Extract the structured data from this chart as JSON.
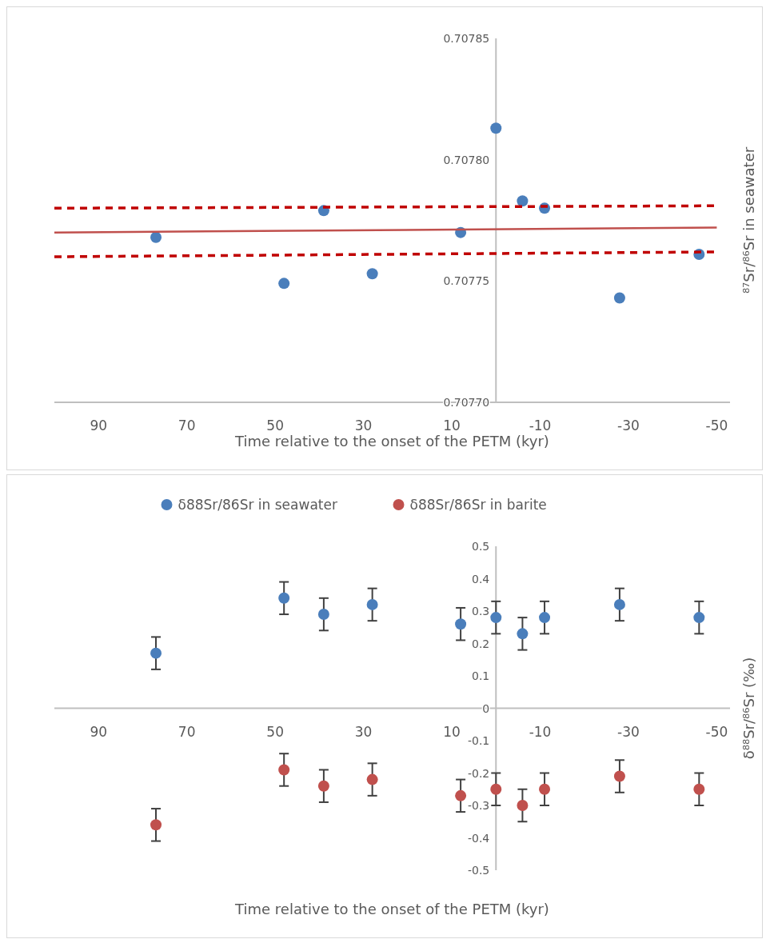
{
  "chart_data": [
    {
      "type": "scatter",
      "xlabel": "Time relative to the onset of the PETM (kyr)",
      "ylabel": "⁸⁷Sr/⁸⁶Sr in seawater",
      "xlim": [
        100,
        -53
      ],
      "xticks": [
        90,
        70,
        50,
        30,
        10,
        -10,
        -30,
        -50
      ],
      "ylim": [
        0.7077,
        0.70785
      ],
      "yticks": [
        {
          "value": 0.7077,
          "label": "0.70770"
        },
        {
          "value": 0.70775,
          "label": "0.70775"
        },
        {
          "value": 0.7078,
          "label": "0.70780"
        },
        {
          "value": 0.70785,
          "label": "0.70785"
        }
      ],
      "grid": false,
      "legend": false,
      "marker": "circle",
      "series": [
        {
          "color": "#4a7ebb",
          "x": [
            77,
            48,
            39,
            28,
            8,
            0,
            -6,
            -11,
            -28,
            -46
          ],
          "values": [
            0.707768,
            0.707749,
            0.707779,
            0.707753,
            0.70777,
            0.707813,
            0.707783,
            0.70778,
            0.707743,
            0.707761
          ]
        },
        {
          "type": "line",
          "color": "#c0504d",
          "line_style": "solid",
          "marker": "none",
          "x": [
            100,
            -50
          ],
          "values": [
            0.70777,
            0.707772
          ]
        },
        {
          "type": "line",
          "color": "#c00000",
          "line_style": "dashed",
          "marker": "none",
          "x": [
            100,
            -50
          ],
          "values": [
            0.70778,
            0.707781
          ]
        },
        {
          "type": "line",
          "color": "#c00000",
          "line_style": "dashed",
          "marker": "none",
          "x": [
            100,
            -50
          ],
          "values": [
            0.70776,
            0.707762
          ]
        }
      ]
    },
    {
      "type": "scatter",
      "xlabel": "Time relative to the onset of the PETM (kyr)",
      "ylabel": "δ⁸⁸Sr/⁸⁶Sr  (‰)",
      "xlim": [
        100,
        -53
      ],
      "xticks": [
        90,
        70,
        50,
        30,
        10,
        -10,
        -30,
        -50
      ],
      "ylim": [
        -0.5,
        0.5
      ],
      "yticks": [
        -0.5,
        -0.4,
        -0.3,
        -0.2,
        -0.1,
        0,
        0.1,
        0.2,
        0.3,
        0.4,
        0.5
      ],
      "grid": false,
      "legend": "top",
      "marker": "circle",
      "series": [
        {
          "name": "δ88Sr/86Sr in seawater",
          "color": "#4a7ebb",
          "x": [
            77,
            48,
            39,
            28,
            8,
            0,
            -6,
            -11,
            -28,
            -46
          ],
          "values": [
            0.17,
            0.34,
            0.29,
            0.32,
            0.26,
            0.28,
            0.23,
            0.28,
            0.32,
            0.28
          ],
          "errors": [
            0.05,
            0.05,
            0.05,
            0.05,
            0.05,
            0.05,
            0.05,
            0.05,
            0.05,
            0.05
          ]
        },
        {
          "name": "δ88Sr/86Sr in barite",
          "color": "#c0504d",
          "x": [
            77,
            48,
            39,
            28,
            8,
            0,
            -6,
            -11,
            -28,
            -46
          ],
          "values": [
            -0.36,
            -0.19,
            -0.24,
            -0.22,
            -0.27,
            -0.25,
            -0.3,
            -0.25,
            -0.21,
            -0.25
          ],
          "errors": [
            0.05,
            0.05,
            0.05,
            0.05,
            0.05,
            0.05,
            0.05,
            0.05,
            0.05,
            0.05
          ]
        }
      ]
    }
  ]
}
